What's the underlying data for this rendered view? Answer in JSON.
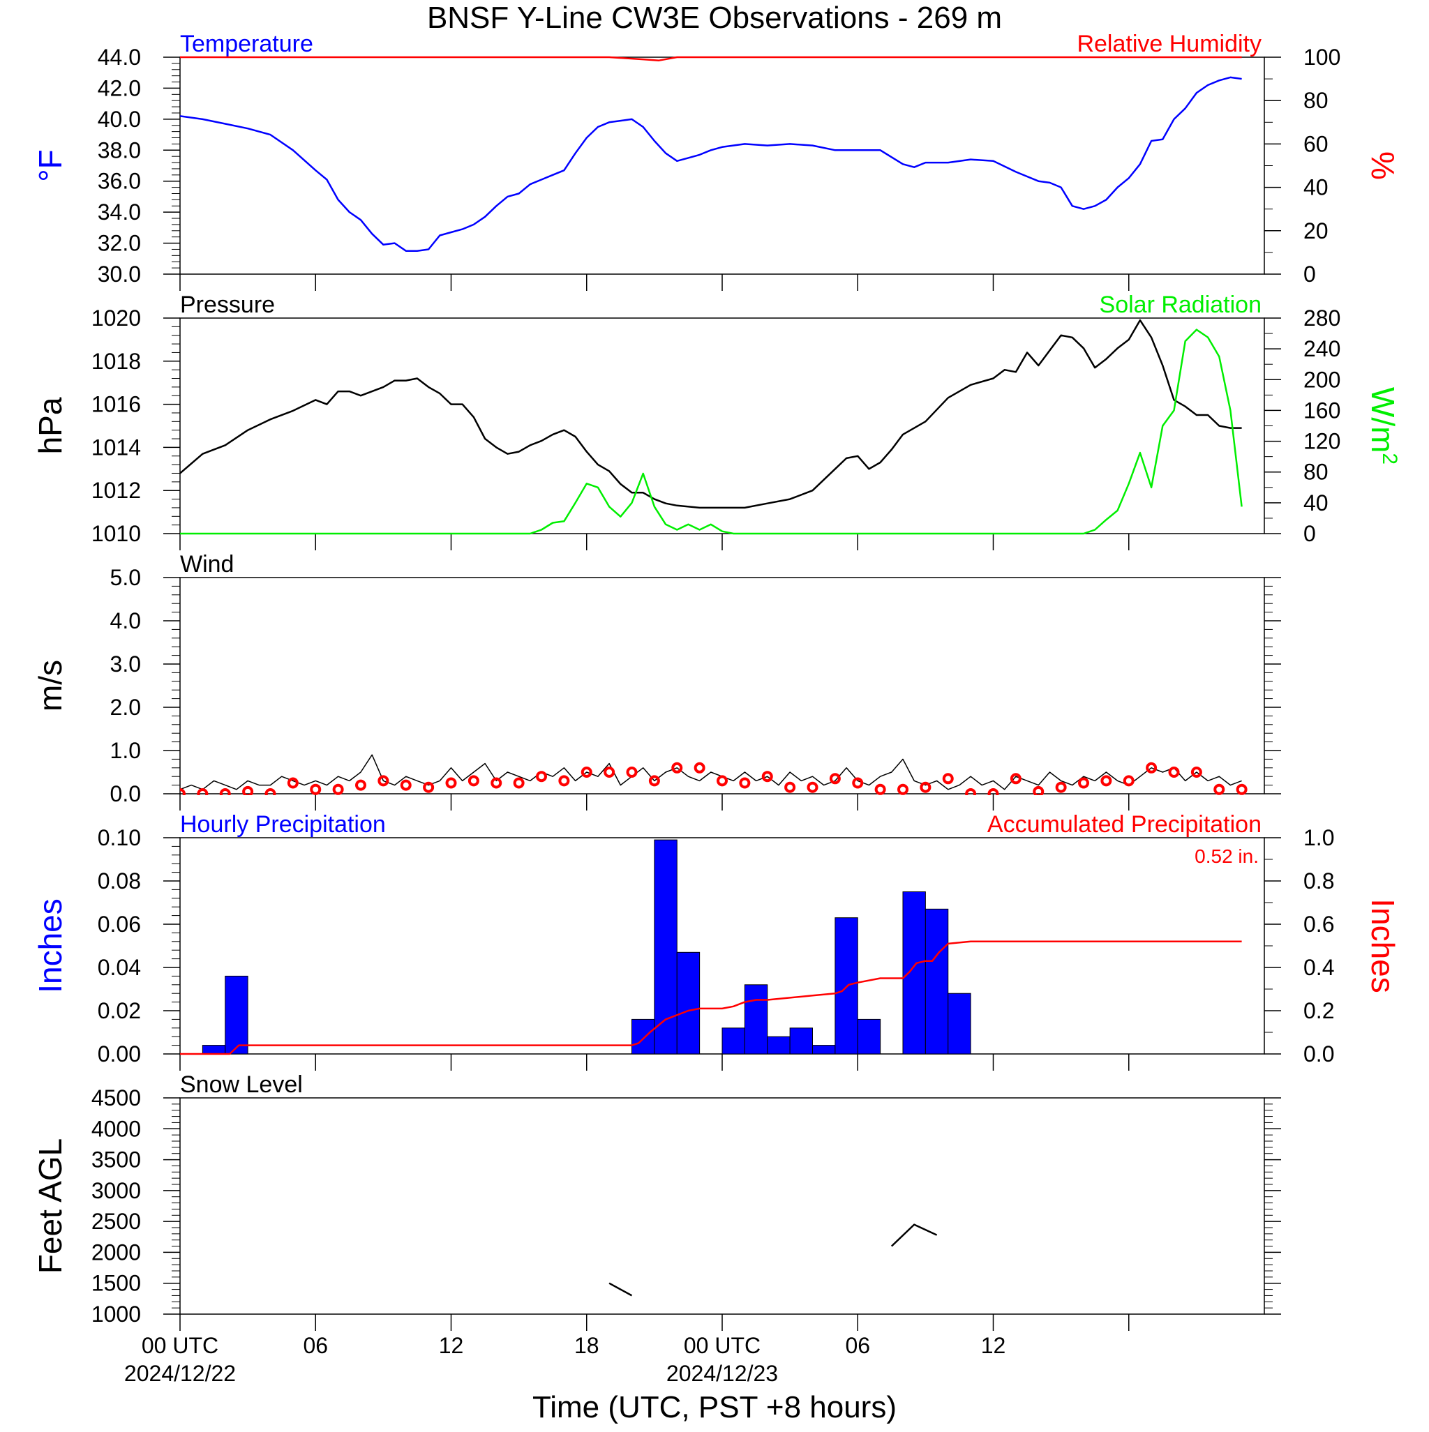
{
  "title": "BNSF Y-Line CW3E Observations - 269 m",
  "x_axis": {
    "label": "Time (UTC, PST +8 hours)",
    "ticks": [
      {
        "hour": 0,
        "label": "00 UTC",
        "date": "2024/12/22"
      },
      {
        "hour": 6,
        "label": "06",
        "date": ""
      },
      {
        "hour": 12,
        "label": "12",
        "date": ""
      },
      {
        "hour": 18,
        "label": "18",
        "date": ""
      },
      {
        "hour": 24,
        "label": "00 UTC",
        "date": "2024/12/23"
      },
      {
        "hour": 30,
        "label": "06",
        "date": ""
      },
      {
        "hour": 36,
        "label": "12",
        "date": ""
      },
      {
        "hour": 42,
        "label": "",
        "date": ""
      }
    ],
    "range_hours": [
      0,
      48
    ]
  },
  "colors": {
    "blue": "#0000ff",
    "red": "#ff0000",
    "green": "#00ee00",
    "black": "#000000"
  },
  "chart_data": [
    {
      "type": "line",
      "panel": "temperature_humidity",
      "left_label": "Temperature",
      "right_label": "Relative Humidity",
      "ylabel": "°F",
      "y2label": "%",
      "ylim": [
        30,
        44
      ],
      "y2lim": [
        0,
        100
      ],
      "yticks": [
        "30.0",
        "32.0",
        "34.0",
        "36.0",
        "38.0",
        "40.0",
        "42.0",
        "44.0"
      ],
      "y2ticks": [
        "0",
        "20",
        "40",
        "60",
        "80",
        "100"
      ],
      "series": [
        {
          "name": "Temperature",
          "axis": "left",
          "color": "#0000ff",
          "x": [
            0,
            1,
            2,
            3,
            4,
            5,
            6,
            6.5,
            7,
            7.5,
            8,
            8.5,
            9,
            9.5,
            10,
            10.5,
            11,
            11.5,
            12,
            12.5,
            13,
            13.5,
            14,
            14.5,
            15,
            15.5,
            16,
            16.5,
            17,
            17.5,
            18,
            18.5,
            19,
            19.5,
            20,
            20.5,
            21,
            21.5,
            22,
            22.5,
            23,
            23.5,
            24,
            25,
            26,
            27,
            28,
            29,
            30,
            31,
            32,
            32.5,
            33,
            34,
            35,
            36,
            37,
            38,
            38.5,
            39,
            39.5,
            40,
            40.5,
            41,
            41.5,
            42,
            42.5,
            43,
            43.5,
            44,
            44.5,
            45,
            45.5,
            46,
            46.5,
            47
          ],
          "y": [
            40.2,
            40.0,
            39.7,
            39.4,
            39.0,
            38.0,
            36.7,
            36.1,
            34.8,
            34.0,
            33.5,
            32.6,
            31.9,
            32.0,
            31.5,
            31.5,
            31.6,
            32.5,
            32.7,
            32.9,
            33.2,
            33.7,
            34.4,
            35.0,
            35.2,
            35.8,
            36.1,
            36.4,
            36.7,
            37.8,
            38.8,
            39.5,
            39.8,
            39.9,
            40.0,
            39.5,
            38.6,
            37.8,
            37.3,
            37.5,
            37.7,
            38.0,
            38.2,
            38.4,
            38.3,
            38.4,
            38.3,
            38.0,
            38.0,
            38.0,
            37.1,
            36.9,
            37.2,
            37.2,
            37.4,
            37.3,
            36.6,
            36.0,
            35.9,
            35.6,
            34.4,
            34.2,
            34.4,
            34.8,
            35.6,
            36.2,
            37.1,
            38.6,
            38.7,
            40.0,
            40.7,
            41.7,
            42.2,
            42.5,
            42.7,
            42.6
          ]
        },
        {
          "name": "Relative Humidity",
          "axis": "right",
          "color": "#ff0000",
          "x": [
            0,
            19,
            20.5,
            21.2,
            22,
            47
          ],
          "y": [
            100,
            100,
            99,
            98.5,
            100,
            100
          ]
        }
      ]
    },
    {
      "type": "line",
      "panel": "pressure_solar",
      "left_label": "Pressure",
      "right_label": "Solar Radiation",
      "ylabel": "hPa",
      "y2label": "W/m",
      "y2label_sup": "2",
      "ylim": [
        1010,
        1020
      ],
      "y2lim": [
        0,
        280
      ],
      "yticks": [
        "1010",
        "1012",
        "1014",
        "1016",
        "1018",
        "1020"
      ],
      "y2ticks": [
        "0",
        "40",
        "80",
        "120",
        "160",
        "200",
        "240",
        "280"
      ],
      "series": [
        {
          "name": "Pressure",
          "axis": "left",
          "color": "#000000",
          "x": [
            0,
            1,
            2,
            3,
            4,
            5,
            6,
            6.5,
            7,
            7.5,
            8,
            8.5,
            9,
            9.5,
            10,
            10.5,
            11,
            11.5,
            12,
            12.5,
            13,
            13.5,
            14,
            14.5,
            15,
            15.5,
            16,
            16.5,
            17,
            17.5,
            18,
            18.5,
            19,
            19.5,
            20,
            20.5,
            21,
            21.5,
            22,
            23,
            24,
            25,
            26,
            27,
            28,
            29,
            29.5,
            30,
            30.5,
            31,
            31.5,
            32,
            33,
            34,
            35,
            36,
            36.5,
            37,
            37.5,
            38,
            38.5,
            39,
            39.5,
            40,
            40.5,
            41,
            41.5,
            42,
            42.5,
            43,
            43.5,
            44,
            44.5,
            45,
            45.5,
            46,
            46.5,
            47
          ],
          "y": [
            1012.8,
            1013.7,
            1014.1,
            1014.8,
            1015.3,
            1015.7,
            1016.2,
            1016.0,
            1016.6,
            1016.6,
            1016.4,
            1016.6,
            1016.8,
            1017.1,
            1017.1,
            1017.2,
            1016.8,
            1016.5,
            1016.0,
            1016.0,
            1015.4,
            1014.4,
            1014.0,
            1013.7,
            1013.8,
            1014.1,
            1014.3,
            1014.6,
            1014.8,
            1014.5,
            1013.8,
            1013.2,
            1012.9,
            1012.3,
            1011.9,
            1011.9,
            1011.6,
            1011.4,
            1011.3,
            1011.2,
            1011.2,
            1011.2,
            1011.4,
            1011.6,
            1012.0,
            1013.0,
            1013.5,
            1013.6,
            1013.0,
            1013.3,
            1013.9,
            1014.6,
            1015.2,
            1016.3,
            1016.9,
            1017.2,
            1017.6,
            1017.5,
            1018.4,
            1017.8,
            1018.5,
            1019.2,
            1019.1,
            1018.6,
            1017.7,
            1018.1,
            1018.6,
            1019.0,
            1019.9,
            1019.1,
            1017.8,
            1016.2,
            1015.9,
            1015.5,
            1015.5,
            1015.0,
            1014.9,
            1014.9
          ]
        },
        {
          "name": "Solar Radiation",
          "axis": "right",
          "color": "#00ee00",
          "x": [
            0,
            15.5,
            16,
            16.5,
            17,
            17.5,
            18,
            18.5,
            19,
            19.5,
            20,
            20.5,
            21,
            21.5,
            22,
            22.5,
            23,
            23.5,
            24,
            24.5,
            40,
            40.5,
            41,
            41.5,
            42,
            42.5,
            43,
            43.5,
            44,
            44.5,
            45,
            45.5,
            46,
            46.5,
            47
          ],
          "y": [
            0,
            0,
            5,
            14,
            16,
            40,
            65,
            60,
            35,
            22,
            40,
            78,
            35,
            12,
            5,
            12,
            5,
            12,
            3,
            0,
            0,
            5,
            18,
            30,
            65,
            105,
            60,
            140,
            160,
            250,
            265,
            255,
            230,
            160,
            35
          ]
        }
      ]
    },
    {
      "type": "line",
      "panel": "wind",
      "left_label": "Wind",
      "ylabel": "m/s",
      "ylim": [
        0,
        5
      ],
      "yticks": [
        "0.0",
        "1.0",
        "2.0",
        "3.0",
        "4.0",
        "5.0"
      ],
      "series": [
        {
          "name": "Wind",
          "axis": "left",
          "color": "#000000",
          "x": [
            0,
            0.5,
            1,
            1.5,
            2,
            2.5,
            3,
            3.5,
            4,
            4.5,
            5,
            5.5,
            6,
            6.5,
            7,
            7.5,
            8,
            8.5,
            9,
            9.5,
            10,
            10.5,
            11,
            11.5,
            12,
            12.5,
            13,
            13.5,
            14,
            14.5,
            15,
            15.5,
            16,
            16.5,
            17,
            17.5,
            18,
            18.5,
            19,
            19.5,
            20,
            20.5,
            21,
            21.5,
            22,
            22.5,
            23,
            23.5,
            24,
            24.5,
            25,
            25.5,
            26,
            26.5,
            27,
            27.5,
            28,
            28.5,
            29,
            29.5,
            30,
            30.5,
            31,
            31.5,
            32,
            32.5,
            33,
            33.5,
            34,
            34.5,
            35,
            35.5,
            36,
            36.5,
            37,
            37.5,
            38,
            38.5,
            39,
            39.5,
            40,
            40.5,
            41,
            41.5,
            42,
            42.5,
            43,
            43.5,
            44,
            44.5,
            45,
            45.5,
            46,
            46.5,
            47
          ],
          "y": [
            0.1,
            0.2,
            0.1,
            0.3,
            0.2,
            0.1,
            0.3,
            0.2,
            0.2,
            0.4,
            0.3,
            0.2,
            0.3,
            0.2,
            0.4,
            0.3,
            0.5,
            0.9,
            0.3,
            0.2,
            0.4,
            0.3,
            0.2,
            0.3,
            0.6,
            0.3,
            0.5,
            0.7,
            0.3,
            0.5,
            0.4,
            0.3,
            0.5,
            0.4,
            0.6,
            0.3,
            0.5,
            0.4,
            0.7,
            0.2,
            0.4,
            0.6,
            0.3,
            0.5,
            0.6,
            0.4,
            0.3,
            0.5,
            0.4,
            0.3,
            0.5,
            0.3,
            0.4,
            0.2,
            0.5,
            0.3,
            0.4,
            0.2,
            0.3,
            0.6,
            0.3,
            0.2,
            0.4,
            0.5,
            0.8,
            0.3,
            0.2,
            0.3,
            0.1,
            0.2,
            0.4,
            0.2,
            0.3,
            0.1,
            0.4,
            0.3,
            0.2,
            0.5,
            0.3,
            0.2,
            0.4,
            0.3,
            0.5,
            0.3,
            0.2,
            0.4,
            0.6,
            0.5,
            0.6,
            0.3,
            0.5,
            0.3,
            0.4,
            0.2,
            0.3
          ]
        },
        {
          "name": "Wind markers",
          "axis": "left",
          "color": "#ff0000",
          "x": [
            0,
            1,
            2,
            3,
            4,
            5,
            6,
            7,
            8,
            9,
            10,
            11,
            12,
            13,
            14,
            15,
            16,
            17,
            18,
            19,
            20,
            21,
            22,
            23,
            24,
            25,
            26,
            27,
            28,
            29,
            30,
            31,
            32,
            33,
            34,
            35,
            36,
            37,
            38,
            39,
            40,
            41,
            42,
            43,
            44,
            45,
            46,
            47
          ],
          "y": [
            0.0,
            0.0,
            0.0,
            0.05,
            0.0,
            0.25,
            0.1,
            0.1,
            0.2,
            0.3,
            0.2,
            0.15,
            0.25,
            0.3,
            0.25,
            0.25,
            0.4,
            0.3,
            0.5,
            0.5,
            0.5,
            0.3,
            0.6,
            0.6,
            0.3,
            0.25,
            0.4,
            0.15,
            0.15,
            0.35,
            0.25,
            0.1,
            0.1,
            0.15,
            0.35,
            0.0,
            0.0,
            0.35,
            0.05,
            0.15,
            0.25,
            0.3,
            0.3,
            0.6,
            0.5,
            0.5,
            0.1,
            0.1
          ]
        }
      ]
    },
    {
      "type": "bar",
      "panel": "precipitation",
      "left_label": "Hourly Precipitation",
      "right_label": "Accumulated Precipitation",
      "total_label": "0.52 in.",
      "ylabel": "Inches",
      "y2label": "Inches",
      "ylim": [
        0,
        0.1
      ],
      "y2lim": [
        0,
        1.0
      ],
      "yticks": [
        "0.00",
        "0.02",
        "0.04",
        "0.06",
        "0.08",
        "0.10"
      ],
      "y2ticks": [
        "0.0",
        "0.2",
        "0.4",
        "0.6",
        "0.8",
        "1.0"
      ],
      "series": [
        {
          "name": "Hourly Precipitation",
          "axis": "left",
          "color": "#0000ff",
          "x": [
            1,
            2,
            20,
            21,
            22,
            24,
            25,
            26,
            27,
            28,
            29,
            30,
            32,
            33,
            34
          ],
          "y": [
            0.004,
            0.036,
            0.016,
            0.099,
            0.047,
            0.012,
            0.032,
            0.008,
            0.012,
            0.004,
            0.063,
            0.016,
            0.075,
            0.067,
            0.028
          ]
        },
        {
          "name": "Accumulated Precipitation",
          "axis": "right",
          "color": "#ff0000",
          "x": [
            0,
            2.2,
            2.6,
            20,
            20.3,
            20.8,
            21.5,
            22.5,
            23,
            23.3,
            24,
            24.5,
            25,
            25.5,
            26,
            27,
            28,
            29,
            29.3,
            29.6,
            30,
            31,
            32,
            32.3,
            32.6,
            33,
            33.3,
            33.6,
            34,
            35,
            47
          ],
          "y": [
            0,
            0,
            0.04,
            0.04,
            0.05,
            0.1,
            0.16,
            0.2,
            0.21,
            0.21,
            0.21,
            0.22,
            0.24,
            0.25,
            0.25,
            0.26,
            0.27,
            0.28,
            0.29,
            0.32,
            0.33,
            0.35,
            0.35,
            0.38,
            0.42,
            0.43,
            0.43,
            0.47,
            0.51,
            0.52,
            0.52
          ]
        }
      ]
    },
    {
      "type": "line",
      "panel": "snow_level",
      "left_label": "Snow Level",
      "ylabel": "Feet AGL",
      "ylim": [
        1000,
        4500
      ],
      "yticks": [
        "1000",
        "1500",
        "2000",
        "2500",
        "3000",
        "3500",
        "4000",
        "4500"
      ],
      "series": [
        {
          "name": "Snow Level A",
          "axis": "left",
          "color": "#000000",
          "x": [
            19,
            20
          ],
          "y": [
            1500,
            1300
          ]
        },
        {
          "name": "Snow Level B",
          "axis": "left",
          "color": "#000000",
          "x": [
            31.5,
            32.5,
            33.5
          ],
          "y": [
            2100,
            2450,
            2280
          ]
        }
      ]
    }
  ]
}
